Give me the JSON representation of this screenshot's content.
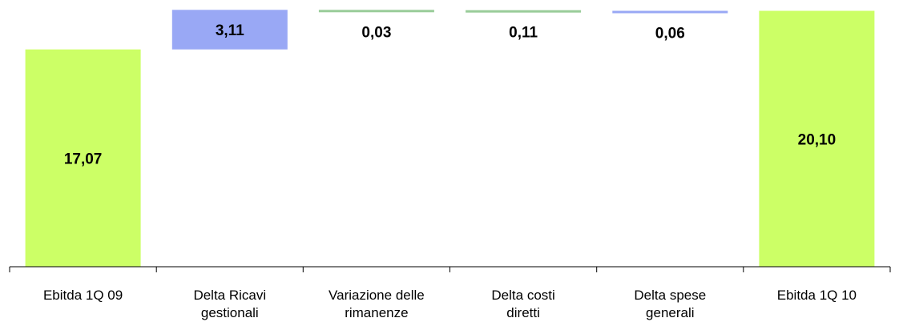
{
  "chart_data": {
    "type": "bar",
    "subtype": "waterfall",
    "categories": [
      [
        "Ebitda 1Q 09"
      ],
      [
        "Delta Ricavi",
        "gestionali"
      ],
      [
        "Variazione delle",
        "rimanenze"
      ],
      [
        "Delta costi",
        "diretti"
      ],
      [
        "Delta spese",
        "generali"
      ],
      [
        "Ebitda 1Q 10"
      ]
    ],
    "values": [
      17.07,
      3.11,
      0.03,
      0.11,
      0.06,
      20.1
    ],
    "bar_kinds": [
      "total",
      "increase",
      "decrease",
      "decrease",
      "increase",
      "total"
    ],
    "data_labels": [
      "17,07",
      "3,11",
      "0,03",
      "0,11",
      "0,06",
      "20,10"
    ],
    "ylim": [
      0,
      20.7
    ],
    "grid": false,
    "legend": "none",
    "colors": {
      "total": "#ccff66",
      "increase": "#99a8f5",
      "decrease": "#99cc99",
      "axis": "#000000"
    }
  }
}
